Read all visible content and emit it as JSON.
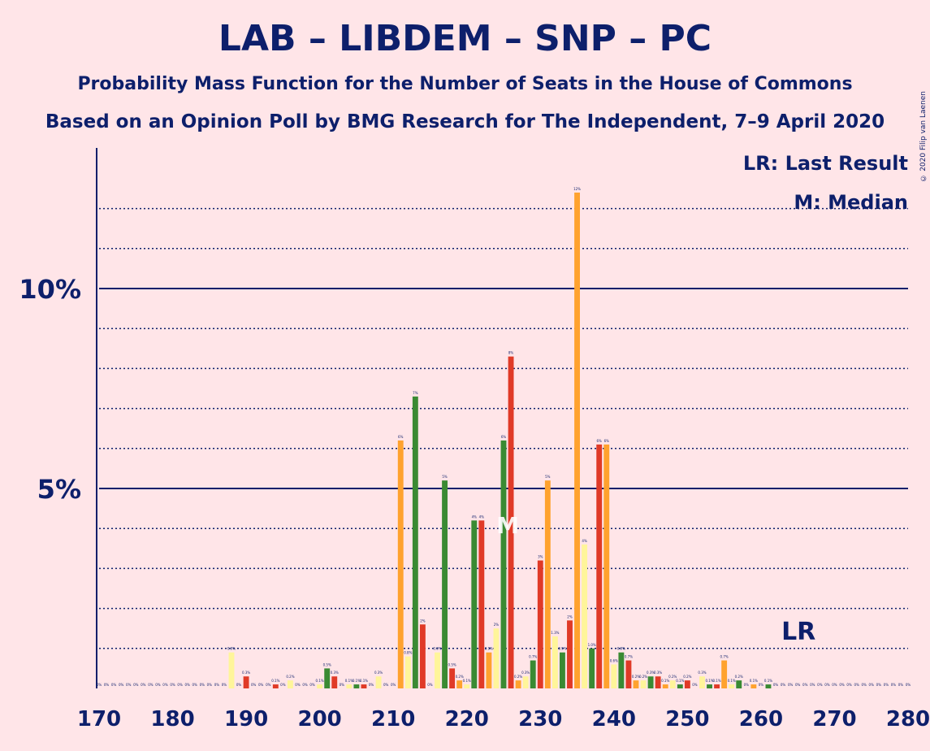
{
  "title": "LAB – LIBDEM – SNP – PC",
  "subtitle": "Probability Mass Function for the Number of Seats in the House of Commons",
  "subtitle2": "Based on an Opinion Poll by BMG Research for The Independent, 7–9 April 2020",
  "credit": "© 2020 Filip van Laenen",
  "legend": {
    "lr": "LR: Last Result",
    "m": "M: Median"
  },
  "markers": {
    "lr_label": "LR",
    "lr_seat": 265,
    "m_label": "M",
    "median_seat": 226
  },
  "colors": {
    "background": "#FFE5E8",
    "text": "#0D1F6B",
    "red": "#E03A27",
    "orange": "#FFA22E",
    "yellow": "#FFF59A",
    "green": "#3A8A33"
  },
  "chart_data": {
    "type": "bar",
    "xlabel": "",
    "ylabel": "",
    "xlim": [
      170,
      280
    ],
    "ylim": [
      0,
      13.5
    ],
    "x_ticks": [
      "170",
      "180",
      "190",
      "200",
      "210",
      "220",
      "230",
      "240",
      "250",
      "260",
      "270",
      "280"
    ],
    "y_ticks": [
      {
        "value": 5,
        "label": "5%"
      },
      {
        "value": 10,
        "label": "10%"
      }
    ],
    "dotted_gridlines": [
      1,
      2,
      3,
      4,
      6,
      7,
      8,
      9,
      11,
      12
    ],
    "solid_gridlines": [
      5,
      10
    ],
    "color_cycle": [
      "red",
      "orange",
      "yellow",
      "green"
    ],
    "seats": [
      170,
      171,
      172,
      173,
      174,
      175,
      176,
      177,
      178,
      179,
      180,
      181,
      182,
      183,
      184,
      185,
      186,
      187,
      188,
      189,
      190,
      191,
      192,
      193,
      194,
      195,
      196,
      197,
      198,
      199,
      200,
      201,
      202,
      203,
      204,
      205,
      206,
      207,
      208,
      209,
      210,
      211,
      212,
      213,
      214,
      215,
      216,
      217,
      218,
      219,
      220,
      221,
      222,
      223,
      224,
      225,
      226,
      227,
      228,
      229,
      230,
      231,
      232,
      233,
      234,
      235,
      236,
      237,
      238,
      239,
      240,
      241,
      242,
      243,
      244,
      245,
      246,
      247,
      248,
      249,
      250,
      251,
      252,
      253,
      254,
      255,
      256,
      257,
      258,
      259,
      260,
      261,
      262,
      263,
      264,
      265,
      266,
      267,
      268,
      269,
      270,
      271,
      272,
      273,
      274,
      275,
      276,
      277,
      278,
      279,
      280
    ],
    "values": [
      0,
      0,
      0,
      0,
      0,
      0,
      0,
      0,
      0,
      0,
      0,
      0,
      0,
      0,
      0,
      0,
      0,
      0,
      0.9,
      0,
      0.3,
      0,
      0,
      0,
      0.1,
      0,
      0.2,
      0,
      0,
      0,
      0.1,
      0.5,
      0.3,
      0,
      0.1,
      0.1,
      0.1,
      0,
      0.3,
      0,
      0,
      6.2,
      0.8,
      7.3,
      1.6,
      0,
      0.9,
      5.2,
      0.5,
      0.2,
      0.1,
      4.2,
      4.2,
      0.9,
      1.5,
      6.2,
      8.3,
      0.2,
      0.3,
      0.7,
      3.2,
      5.2,
      1.3,
      0.9,
      1.7,
      12.4,
      3.6,
      1.0,
      6.1,
      6.1,
      0.6,
      0.9,
      0.7,
      0.2,
      0.2,
      0.3,
      0.3,
      0.1,
      0.2,
      0.1,
      0.2,
      0,
      0.3,
      0.1,
      0.1,
      0.7,
      0.1,
      0.2,
      0,
      0.1,
      0,
      0.1,
      0,
      0,
      0,
      0,
      0,
      0,
      0,
      0,
      0,
      0,
      0,
      0,
      0,
      0,
      0,
      0,
      0,
      0,
      0
    ],
    "labels": [
      "0%",
      "0%",
      "0%",
      "0%",
      "0%",
      "0%",
      "0%",
      "0%",
      "0%",
      "0%",
      "0%",
      "0%",
      "0%",
      "0%",
      "0%",
      "0%",
      "0%",
      "0%",
      "0.9%",
      "0%",
      "0.3%",
      "0%",
      "0%",
      "0%",
      "0.1%",
      "0%",
      "0.2%",
      "0%",
      "0%",
      "0%",
      "0.1%",
      "0.5%",
      "0.3%",
      "0%",
      "0.1%",
      "0.1%",
      "0.1%",
      "0%",
      "0.3%",
      "0%",
      "0%",
      "6%",
      "0.8%",
      "7%",
      "2%",
      "0%",
      "0.9%",
      "5%",
      "0.5%",
      "0.2%",
      "0.1%",
      "4%",
      "4%",
      "0.9%",
      "2%",
      "6%",
      "8%",
      "0.2%",
      "0.3%",
      "0.7%",
      "3%",
      "5%",
      "1.3%",
      "0.9%",
      "2%",
      "12%",
      "4%",
      "1.0%",
      "6%",
      "6%",
      "0.6%",
      "0.9%",
      "0.7%",
      "0.2%",
      "0.2%",
      "0.3%",
      "0.3%",
      "0.1%",
      "0.2%",
      "0.1%",
      "0.2%",
      "0%",
      "0.3%",
      "0.1%",
      "0.1%",
      "0.7%",
      "0.1%",
      "0.2%",
      "0%",
      "0.1%",
      "0%",
      "0.1%",
      "0%",
      "0%",
      "0%",
      "0%",
      "0%",
      "0%",
      "0%",
      "0%",
      "0%",
      "0%",
      "0%",
      "0%",
      "0%",
      "0%",
      "0%",
      "0%",
      "0%",
      "0%",
      "0%"
    ]
  }
}
